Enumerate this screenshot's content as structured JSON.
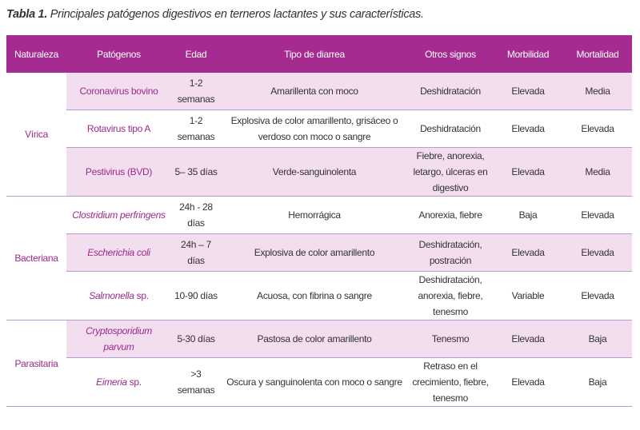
{
  "caption": {
    "label": "Tabla 1.",
    "text": "Principales patógenos digestivos en terneros lactantes y sus características."
  },
  "columns": [
    "Naturaleza",
    "Patógenos",
    "Edad",
    "Tipo de diarrea",
    "Otros signos",
    "Morbilidad",
    "Mortalidad"
  ],
  "groups": [
    {
      "name": "Vírica"
    },
    {
      "name": "Bacteriana"
    },
    {
      "name": "Parasitaria"
    }
  ],
  "rows": [
    {
      "pathogen": "Coronavirus bovino",
      "age": "1-2 semanas",
      "diarrhea": "Amarillenta con moco",
      "signs": "Deshidratación",
      "morbidity": "Elevada",
      "mortality": "Media"
    },
    {
      "pathogen": "Rotavirus tipo A",
      "age": "1-2 semanas",
      "diarrhea": "Explosiva de color amarillento, grisáceo o verdoso con moco o sangre",
      "signs": "Deshidratación",
      "morbidity": "Elevada",
      "mortality": "Elevada"
    },
    {
      "pathogen": "Pestivirus (BVD)",
      "age": "5– 35 días",
      "diarrhea": "Verde-sanguinolenta",
      "signs": "Fiebre, anorexia, letargo, úlceras en digestivo",
      "morbidity": "Elevada",
      "mortality": "Media"
    },
    {
      "pathogen": "Clostridium perfringens",
      "age": "24h - 28 días",
      "diarrhea": "Hemorrágica",
      "signs": "Anorexia, fiebre",
      "morbidity": "Baja",
      "mortality": "Elevada"
    },
    {
      "pathogen_italic": "Escherichia coli",
      "age": "24h – 7 días",
      "diarrhea": "Explosiva de color amarillento",
      "signs": "Deshidratación, postración",
      "morbidity": "Elevada",
      "mortality": "Elevada"
    },
    {
      "pathogen_italic": "Salmonella",
      "pathogen_suffix": " sp.",
      "age": "10-90 días",
      "diarrhea": "Acuosa, con fibrina o sangre",
      "signs": "Deshidratación, anorexia, fiebre, tenesmo",
      "morbidity": "Variable",
      "mortality": "Elevada"
    },
    {
      "pathogen": "Cryptosporidium parvum",
      "age": "5-30 días",
      "diarrhea": "Pastosa de color amarillento",
      "signs": "Tenesmo",
      "morbidity": "Elevada",
      "mortality": "Baja"
    },
    {
      "pathogen_italic": "Eimeria",
      "pathogen_suffix": " sp.",
      "age": ">3 semanas",
      "diarrhea": "Oscura y sanguinolenta con moco o sangre",
      "signs": "Retraso en el crecimiento, fiebre, tenesmo",
      "morbidity": "Elevada",
      "mortality": "Baja"
    }
  ],
  "colors": {
    "header": "#a52b90",
    "shade": "#f3deef",
    "accent_text": "#9c2a8a"
  }
}
